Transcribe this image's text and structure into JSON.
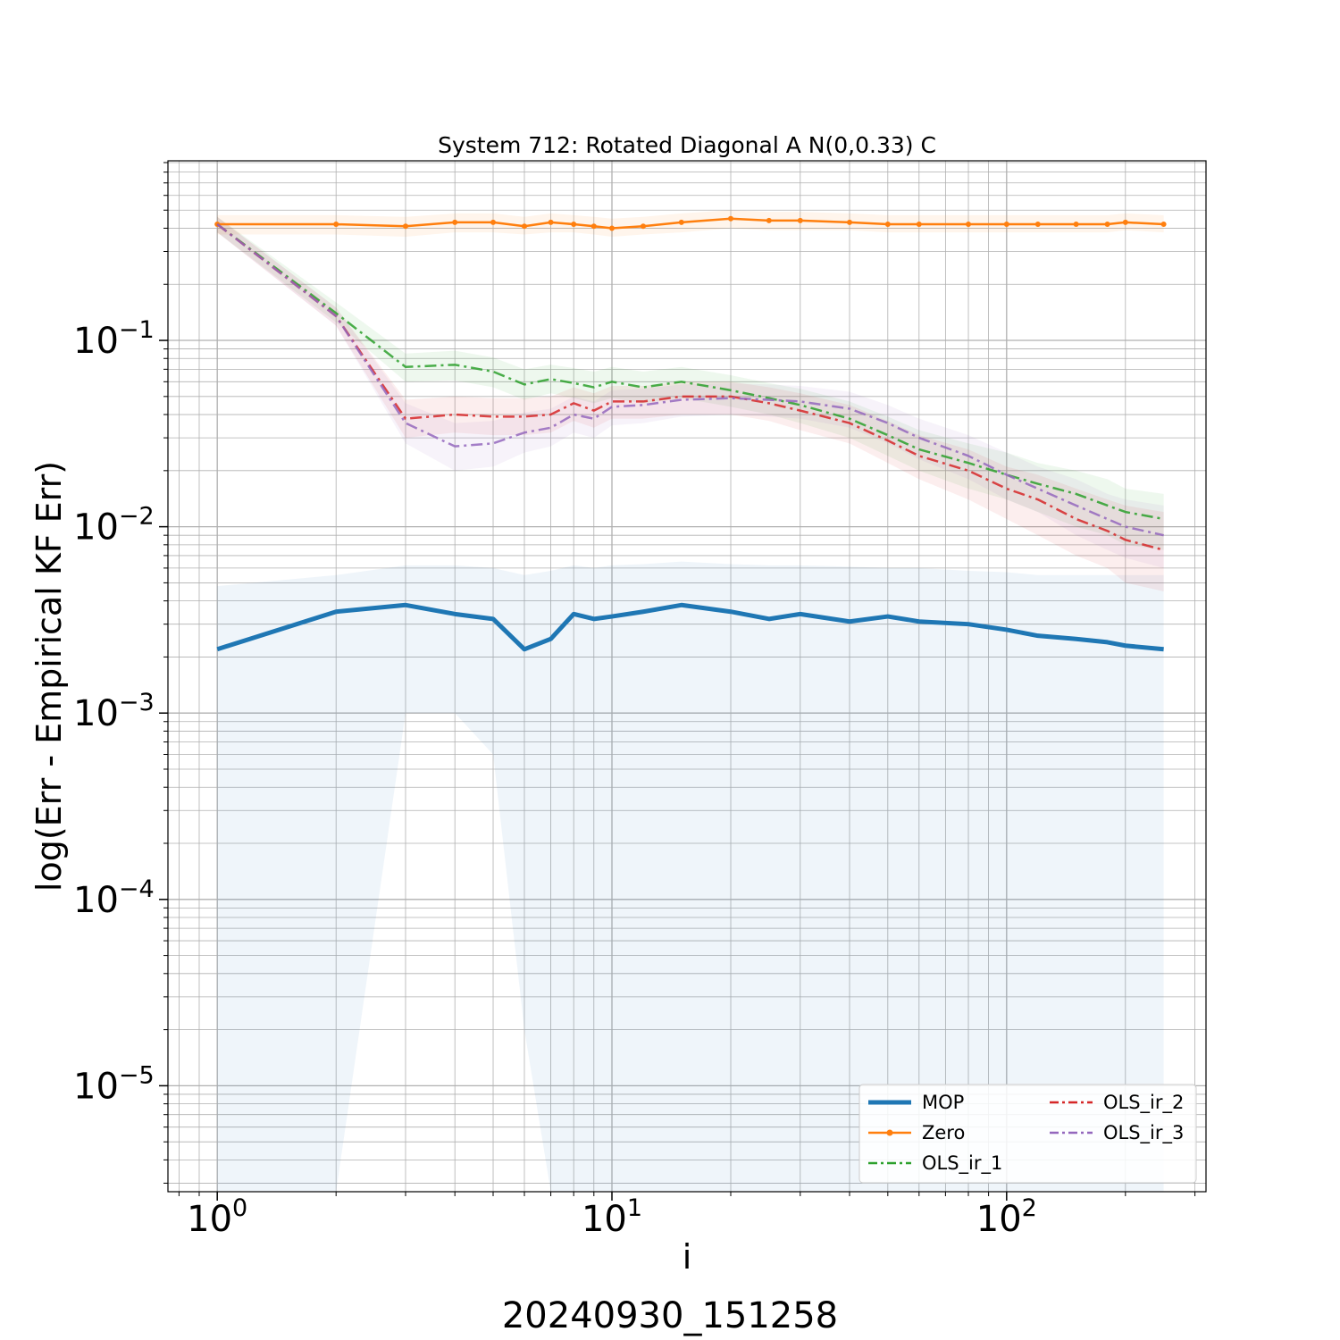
{
  "chart_data": {
    "type": "line",
    "title": "System 712: Rotated Diagonal A N(0,0.33) C",
    "xlabel": "i",
    "ylabel": "log(Err - Empirical KF Err)",
    "xscale": "log",
    "yscale": "log",
    "xlim": [
      0.75,
      320
    ],
    "ylim": [
      2.7e-06,
      0.92
    ],
    "grid": true,
    "legend_position": "lower-right",
    "x_ticks": [
      {
        "base": "10",
        "exp": "0"
      },
      {
        "base": "10",
        "exp": "1"
      },
      {
        "base": "10",
        "exp": "2"
      }
    ],
    "y_ticks": [
      {
        "base": "10",
        "exp": "−1"
      },
      {
        "base": "10",
        "exp": "−2"
      },
      {
        "base": "10",
        "exp": "−3"
      },
      {
        "base": "10",
        "exp": "−4"
      },
      {
        "base": "10",
        "exp": "−5"
      }
    ],
    "x": [
      1,
      2,
      3,
      4,
      5,
      6,
      7,
      8,
      9,
      10,
      12,
      15,
      20,
      25,
      30,
      40,
      50,
      60,
      80,
      100,
      120,
      150,
      180,
      200,
      250
    ],
    "series": [
      {
        "name": "MOP",
        "color": "#1f77b4",
        "style": "solid-thick",
        "values": [
          0.0022,
          0.0035,
          0.0038,
          0.0034,
          0.0032,
          0.0022,
          0.0025,
          0.0034,
          0.0032,
          0.0033,
          0.0035,
          0.0038,
          0.0035,
          0.0032,
          0.0034,
          0.0031,
          0.0033,
          0.0031,
          0.003,
          0.0028,
          0.0026,
          0.0025,
          0.0024,
          0.0023,
          0.0022
        ],
        "band_low": [
          2.7e-06,
          2.7e-06,
          0.001,
          0.001,
          0.0006,
          2e-05,
          2.7e-06,
          2.7e-06,
          2.7e-06,
          2.7e-06,
          2.7e-06,
          2.7e-06,
          2.7e-06,
          2.7e-06,
          2.7e-06,
          2.7e-06,
          2.7e-06,
          2.7e-06,
          2.7e-06,
          2.7e-06,
          2.7e-06,
          2.7e-06,
          2.7e-06,
          2.7e-06,
          2.7e-06
        ],
        "band_high": [
          0.0048,
          0.0055,
          0.0062,
          0.0062,
          0.006,
          0.0055,
          0.0058,
          0.0062,
          0.006,
          0.0062,
          0.0063,
          0.0065,
          0.0063,
          0.0062,
          0.0062,
          0.0061,
          0.006,
          0.006,
          0.0058,
          0.0057,
          0.0055,
          0.0055,
          0.0055,
          0.0055,
          0.0055
        ]
      },
      {
        "name": "Zero",
        "color": "#ff7f0e",
        "style": "solid-markers",
        "values": [
          0.42,
          0.42,
          0.41,
          0.43,
          0.43,
          0.41,
          0.43,
          0.42,
          0.41,
          0.4,
          0.41,
          0.43,
          0.45,
          0.44,
          0.44,
          0.43,
          0.42,
          0.42,
          0.42,
          0.42,
          0.42,
          0.42,
          0.42,
          0.43,
          0.42
        ],
        "band_low": [
          0.37,
          0.37,
          0.36,
          0.38,
          0.38,
          0.37,
          0.38,
          0.38,
          0.37,
          0.36,
          0.37,
          0.38,
          0.4,
          0.39,
          0.39,
          0.39,
          0.38,
          0.38,
          0.38,
          0.38,
          0.38,
          0.38,
          0.38,
          0.39,
          0.38
        ],
        "band_high": [
          0.47,
          0.47,
          0.46,
          0.48,
          0.48,
          0.46,
          0.48,
          0.47,
          0.46,
          0.45,
          0.46,
          0.48,
          0.5,
          0.49,
          0.49,
          0.48,
          0.47,
          0.47,
          0.47,
          0.47,
          0.47,
          0.47,
          0.47,
          0.48,
          0.47
        ]
      },
      {
        "name": "OLS_ir_1",
        "color": "#2ca02c",
        "style": "dashdot",
        "values": [
          0.42,
          0.14,
          0.072,
          0.074,
          0.068,
          0.058,
          0.062,
          0.059,
          0.056,
          0.06,
          0.056,
          0.06,
          0.054,
          0.049,
          0.045,
          0.038,
          0.031,
          0.026,
          0.022,
          0.019,
          0.017,
          0.015,
          0.013,
          0.012,
          0.011
        ],
        "band_low": [
          0.38,
          0.125,
          0.06,
          0.061,
          0.056,
          0.048,
          0.052,
          0.049,
          0.046,
          0.049,
          0.046,
          0.049,
          0.044,
          0.04,
          0.036,
          0.03,
          0.024,
          0.02,
          0.016,
          0.014,
          0.012,
          0.01,
          0.009,
          0.008,
          0.0075
        ],
        "band_high": [
          0.46,
          0.16,
          0.085,
          0.088,
          0.081,
          0.07,
          0.074,
          0.071,
          0.068,
          0.072,
          0.068,
          0.072,
          0.065,
          0.059,
          0.055,
          0.047,
          0.039,
          0.033,
          0.028,
          0.025,
          0.022,
          0.02,
          0.018,
          0.016,
          0.015
        ]
      },
      {
        "name": "OLS_ir_2",
        "color": "#d62728",
        "style": "dashdot",
        "values": [
          0.42,
          0.135,
          0.038,
          0.04,
          0.039,
          0.039,
          0.04,
          0.046,
          0.042,
          0.047,
          0.047,
          0.05,
          0.05,
          0.046,
          0.042,
          0.036,
          0.029,
          0.024,
          0.02,
          0.016,
          0.014,
          0.011,
          0.0095,
          0.0085,
          0.0075
        ],
        "band_low": [
          0.38,
          0.12,
          0.03,
          0.032,
          0.031,
          0.031,
          0.032,
          0.037,
          0.034,
          0.038,
          0.038,
          0.04,
          0.04,
          0.037,
          0.033,
          0.028,
          0.022,
          0.018,
          0.014,
          0.011,
          0.009,
          0.007,
          0.006,
          0.005,
          0.0045
        ],
        "band_high": [
          0.46,
          0.15,
          0.048,
          0.05,
          0.049,
          0.049,
          0.05,
          0.056,
          0.052,
          0.057,
          0.057,
          0.06,
          0.06,
          0.056,
          0.052,
          0.045,
          0.037,
          0.031,
          0.026,
          0.021,
          0.019,
          0.016,
          0.014,
          0.013,
          0.012
        ]
      },
      {
        "name": "OLS_ir_3",
        "color": "#9467bd",
        "style": "dashdot",
        "values": [
          0.42,
          0.135,
          0.036,
          0.027,
          0.028,
          0.032,
          0.034,
          0.04,
          0.038,
          0.044,
          0.045,
          0.048,
          0.049,
          0.048,
          0.047,
          0.043,
          0.036,
          0.03,
          0.024,
          0.019,
          0.016,
          0.013,
          0.011,
          0.01,
          0.009
        ],
        "band_low": [
          0.38,
          0.12,
          0.028,
          0.02,
          0.021,
          0.025,
          0.027,
          0.032,
          0.03,
          0.035,
          0.036,
          0.039,
          0.04,
          0.039,
          0.038,
          0.034,
          0.028,
          0.023,
          0.018,
          0.014,
          0.012,
          0.009,
          0.0075,
          0.0068,
          0.006
        ],
        "band_high": [
          0.46,
          0.15,
          0.046,
          0.036,
          0.037,
          0.041,
          0.043,
          0.05,
          0.047,
          0.054,
          0.055,
          0.058,
          0.059,
          0.058,
          0.057,
          0.053,
          0.045,
          0.038,
          0.031,
          0.025,
          0.021,
          0.018,
          0.015,
          0.014,
          0.013
        ]
      }
    ]
  },
  "footer": {
    "timestamp": "20240930_151258"
  }
}
